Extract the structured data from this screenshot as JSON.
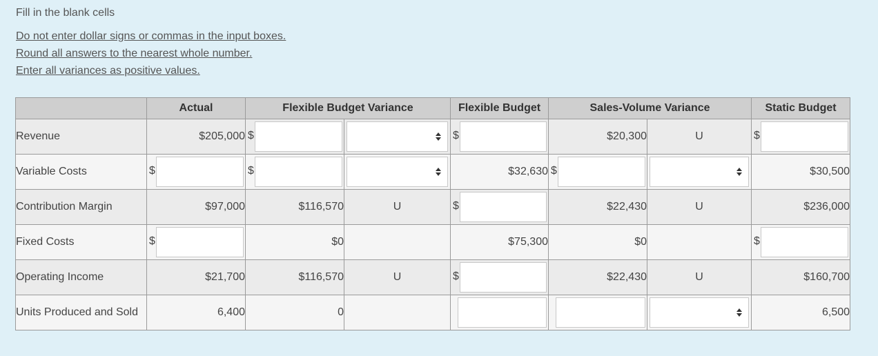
{
  "intro": "Fill in the blank cells",
  "instructions": [
    "Do not enter dollar signs or commas in the input boxes.",
    "Round all answers to the nearest whole number.",
    "Enter all variances as positive values."
  ],
  "headers": [
    "",
    "Actual",
    "Flexible Budget Variance",
    "",
    "Flexible Budget",
    "Sales-Volume Variance",
    "",
    "Static Budget"
  ],
  "dollar_sign": "$",
  "rows": [
    {
      "label": "Revenue",
      "actual": "$205,000",
      "fbv": "",
      "fbv_fu": "",
      "flex": "",
      "svv": "$20,300",
      "svv_fu": "U",
      "static": ""
    },
    {
      "label": "Variable Costs",
      "actual": "",
      "fbv": "",
      "fbv_fu": "",
      "flex": "$32,630",
      "svv": "",
      "svv_fu": "",
      "static": "$30,500"
    },
    {
      "label": "Contribution Margin",
      "actual": "$97,000",
      "fbv": "$116,570",
      "fbv_fu": "U",
      "flex": "",
      "svv": "$22,430",
      "svv_fu": "U",
      "static": "$236,000"
    },
    {
      "label": "Fixed Costs",
      "actual": "",
      "fbv": "$0",
      "fbv_fu": "",
      "flex": "$75,300",
      "svv": "$0",
      "svv_fu": "",
      "static": ""
    },
    {
      "label": "Operating Income",
      "actual": "$21,700",
      "fbv": "$116,570",
      "fbv_fu": "U",
      "flex": "",
      "svv": "$22,430",
      "svv_fu": "U",
      "static": "$160,700"
    },
    {
      "label": "Units Produced and Sold",
      "actual": "6,400",
      "fbv": "0",
      "fbv_fu": "",
      "flex": "",
      "svv": "",
      "svv_fu": "",
      "static": "6,500"
    }
  ]
}
